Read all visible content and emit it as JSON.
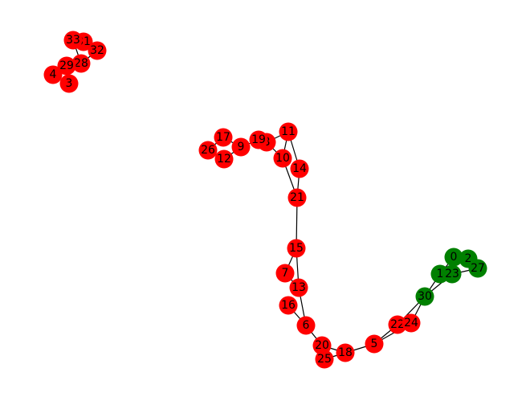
{
  "graph": {
    "colors": {
      "red": "#ff0000",
      "green": "#008000",
      "edge": "#000000"
    },
    "nodes": [
      {
        "id": "0",
        "color": "green"
      },
      {
        "id": "1",
        "color": "green"
      },
      {
        "id": "2",
        "color": "green"
      },
      {
        "id": "3",
        "color": "red"
      },
      {
        "id": "4",
        "color": "red"
      },
      {
        "id": "5",
        "color": "red"
      },
      {
        "id": "6",
        "color": "red"
      },
      {
        "id": "7",
        "color": "red"
      },
      {
        "id": "8",
        "color": "red"
      },
      {
        "id": "9",
        "color": "red"
      },
      {
        "id": "10",
        "color": "red"
      },
      {
        "id": "11",
        "color": "red"
      },
      {
        "id": "12",
        "color": "red"
      },
      {
        "id": "13",
        "color": "red"
      },
      {
        "id": "14",
        "color": "red"
      },
      {
        "id": "15",
        "color": "red"
      },
      {
        "id": "16",
        "color": "red"
      },
      {
        "id": "17",
        "color": "red"
      },
      {
        "id": "18",
        "color": "red"
      },
      {
        "id": "19",
        "color": "red"
      },
      {
        "id": "20",
        "color": "red"
      },
      {
        "id": "21",
        "color": "red"
      },
      {
        "id": "22",
        "color": "red"
      },
      {
        "id": "23",
        "color": "green"
      },
      {
        "id": "24",
        "color": "red"
      },
      {
        "id": "25",
        "color": "red"
      },
      {
        "id": "26",
        "color": "red"
      },
      {
        "id": "27",
        "color": "green"
      },
      {
        "id": "28",
        "color": "red"
      },
      {
        "id": "29",
        "color": "red"
      },
      {
        "id": "30",
        "color": "green"
      },
      {
        "id": "31",
        "color": "red"
      },
      {
        "id": "32",
        "color": "red"
      },
      {
        "id": "33",
        "color": "red"
      }
    ],
    "edges": [
      [
        "0",
        "2"
      ],
      [
        "0",
        "1"
      ],
      [
        "0",
        "23"
      ],
      [
        "2",
        "27"
      ],
      [
        "1",
        "23"
      ],
      [
        "23",
        "27"
      ],
      [
        "1",
        "30"
      ],
      [
        "23",
        "30"
      ],
      [
        "30",
        "22"
      ],
      [
        "30",
        "24"
      ],
      [
        "22",
        "24"
      ],
      [
        "22",
        "5"
      ],
      [
        "24",
        "5"
      ],
      [
        "5",
        "18"
      ],
      [
        "18",
        "20"
      ],
      [
        "18",
        "25"
      ],
      [
        "20",
        "25"
      ],
      [
        "20",
        "6"
      ],
      [
        "6",
        "13"
      ],
      [
        "6",
        "16"
      ],
      [
        "13",
        "7"
      ],
      [
        "13",
        "15"
      ],
      [
        "7",
        "15"
      ],
      [
        "15",
        "21"
      ],
      [
        "21",
        "10"
      ],
      [
        "21",
        "14"
      ],
      [
        "10",
        "11"
      ],
      [
        "14",
        "11"
      ],
      [
        "10",
        "8"
      ],
      [
        "11",
        "8"
      ],
      [
        "8",
        "19"
      ],
      [
        "19",
        "9"
      ],
      [
        "9",
        "17"
      ],
      [
        "9",
        "12"
      ],
      [
        "17",
        "26"
      ],
      [
        "12",
        "26"
      ],
      [
        "33",
        "31"
      ],
      [
        "31",
        "32"
      ],
      [
        "33",
        "28"
      ],
      [
        "28",
        "29"
      ],
      [
        "29",
        "4"
      ],
      [
        "29",
        "3"
      ],
      [
        "28",
        "32"
      ]
    ]
  }
}
